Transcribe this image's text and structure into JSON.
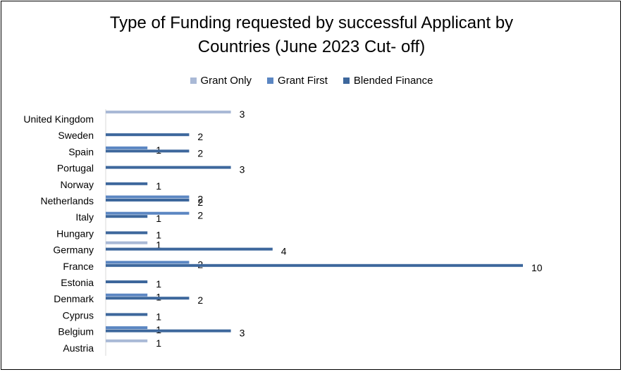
{
  "chart_data": {
    "type": "bar",
    "orientation": "horizontal",
    "title_lines": [
      "Type of Funding requested by successful Applicant by",
      "Countries (June 2023 Cut- off)"
    ],
    "categories": [
      "United Kingdom",
      "Sweden",
      "Spain",
      "Portugal",
      "Norway",
      "Netherlands",
      "Italy",
      "Hungary",
      "Germany",
      "France",
      "Estonia",
      "Denmark",
      "Cyprus",
      "Belgium",
      "Austria"
    ],
    "series": [
      {
        "name": "Grant Only",
        "color": "#a9b9d6",
        "values": [
          3,
          null,
          null,
          null,
          null,
          null,
          null,
          null,
          1,
          null,
          null,
          null,
          null,
          null,
          1
        ]
      },
      {
        "name": "Grant First",
        "color": "#5b86c2",
        "values": [
          null,
          null,
          1,
          null,
          null,
          2,
          2,
          null,
          null,
          2,
          null,
          1,
          null,
          1,
          null
        ]
      },
      {
        "name": "Blended Finance",
        "color": "#3d679c",
        "values": [
          null,
          2,
          2,
          3,
          1,
          2,
          1,
          1,
          4,
          10,
          1,
          2,
          1,
          3,
          null
        ]
      }
    ],
    "xlim": [
      0,
      10
    ],
    "grid": false,
    "legend_position": "top"
  }
}
